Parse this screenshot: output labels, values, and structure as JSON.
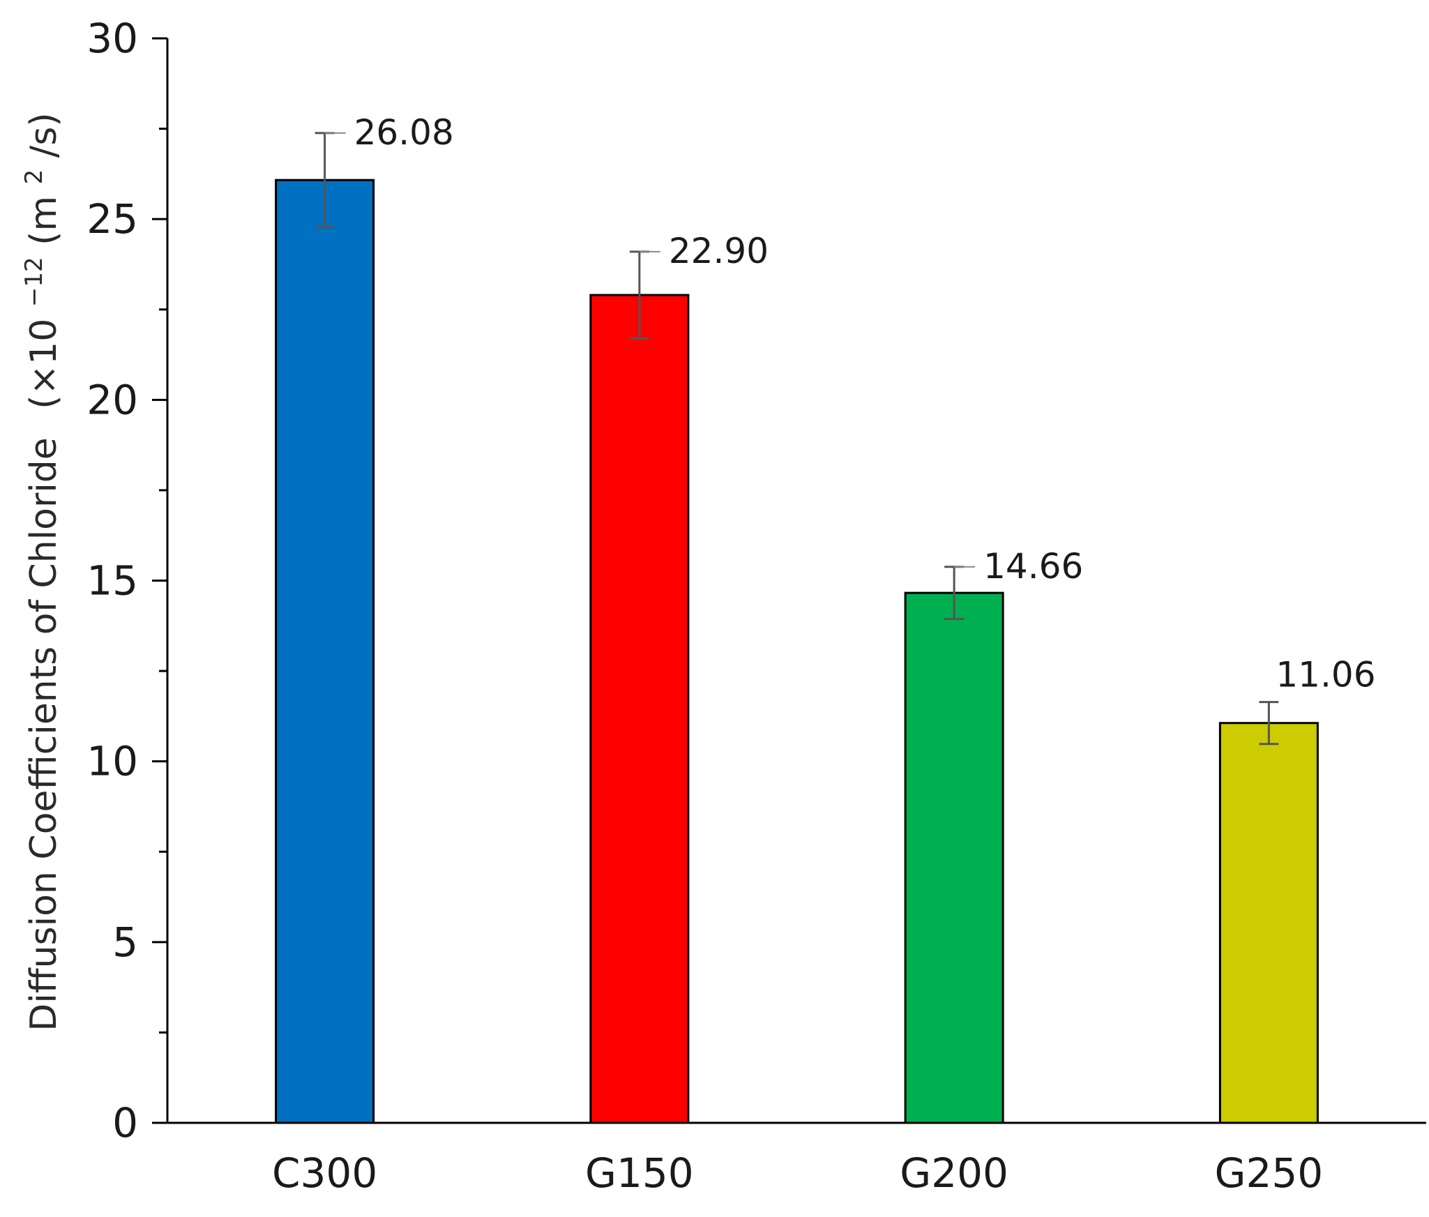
{
  "chart_data": {
    "type": "bar",
    "title": "",
    "xlabel": "",
    "ylabel": {
      "main": "Diffusion Coefficients of Chloride",
      "unit_open": "(×10",
      "unit_exp1": "−12",
      "unit_mid": " (m",
      "unit_exp2": "2",
      "unit_close": "/s)"
    },
    "ylim": [
      0,
      30
    ],
    "yticks": [
      0,
      5,
      10,
      15,
      20,
      25,
      30
    ],
    "yminor": [
      2.5,
      7.5,
      12.5,
      17.5,
      22.5,
      27.5
    ],
    "grid": false,
    "legend": "none",
    "categories": [
      "C300",
      "G150",
      "G200",
      "G250"
    ],
    "values": [
      26.08,
      22.9,
      14.66,
      11.06
    ],
    "value_labels": [
      "26.08",
      "22.90",
      "14.66",
      "11.06"
    ],
    "errors": [
      1.3,
      1.2,
      0.72,
      0.58
    ],
    "colors": [
      "#0070C0",
      "#FF0000",
      "#00B050",
      "#CCCC00"
    ],
    "axis_color": "#000000",
    "errorbar_color": "#555555"
  }
}
